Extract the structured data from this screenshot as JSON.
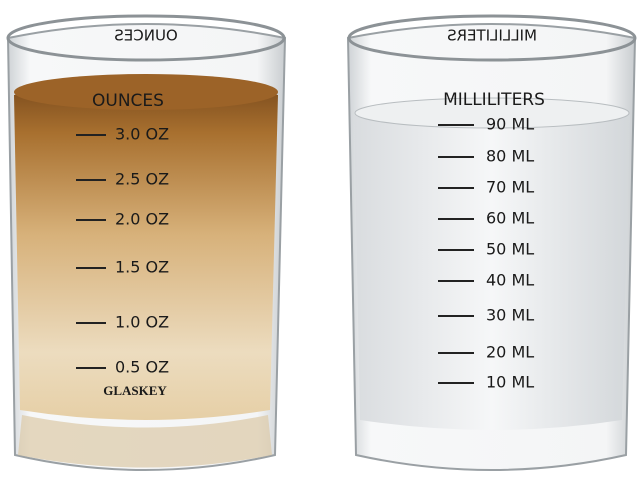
{
  "left_glass": {
    "back_label": "OUNCES",
    "heading": "OUNCES",
    "marks": [
      "3.0 OZ",
      "2.5 OZ",
      "2.0 OZ",
      "1.5 OZ",
      "1.0 OZ",
      "0.5 OZ"
    ],
    "brand": "GLASKEY"
  },
  "right_glass": {
    "back_label": "MILLILITERS",
    "heading": "MILLILITERS",
    "marks": [
      "90 ML",
      "80 ML",
      "70 ML",
      "60 ML",
      "50 ML",
      "40 ML",
      "30 ML",
      "20 ML",
      "10 ML"
    ]
  }
}
